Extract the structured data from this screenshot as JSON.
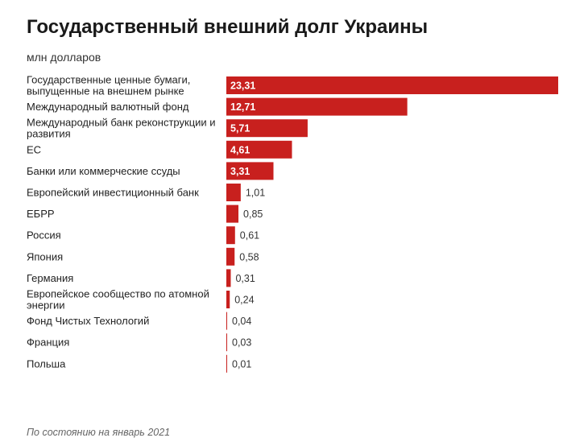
{
  "chart_data": {
    "type": "bar",
    "orientation": "horizontal",
    "title": "Государственный внешний долг Украины",
    "subtitle": "млн долларов",
    "footnote": "По состоянию на январь 2021",
    "bar_color": "#c8201e",
    "categories": [
      [
        "Государственные ценные бумаги,",
        "выпущенные на внешнем рынке"
      ],
      [
        "Международный валютный фонд"
      ],
      [
        "Международный банк реконструкции и",
        "развития"
      ],
      [
        "ЕС"
      ],
      [
        "Банки или коммерческие ссуды"
      ],
      [
        "Европейский инвестиционный банк"
      ],
      [
        "ЕБРР"
      ],
      [
        "Россия"
      ],
      [
        "Япония"
      ],
      [
        "Германия"
      ],
      [
        "Европейское сообщество по атомной",
        "энергии"
      ],
      [
        "Фонд Чистых Технологий"
      ],
      [
        "Франция"
      ],
      [
        "Польша"
      ]
    ],
    "values": [
      23.31,
      12.71,
      5.71,
      4.61,
      3.31,
      1.01,
      0.85,
      0.61,
      0.58,
      0.31,
      0.24,
      0.04,
      0.03,
      0.01
    ],
    "value_labels": [
      "23,31",
      "12,71",
      "5,71",
      "4,61",
      "3,31",
      "1,01",
      "0,85",
      "0,61",
      "0,58",
      "0,31",
      "0,24",
      "0,04",
      "0,03",
      "0,01"
    ],
    "xlim": [
      0,
      23.31
    ]
  }
}
